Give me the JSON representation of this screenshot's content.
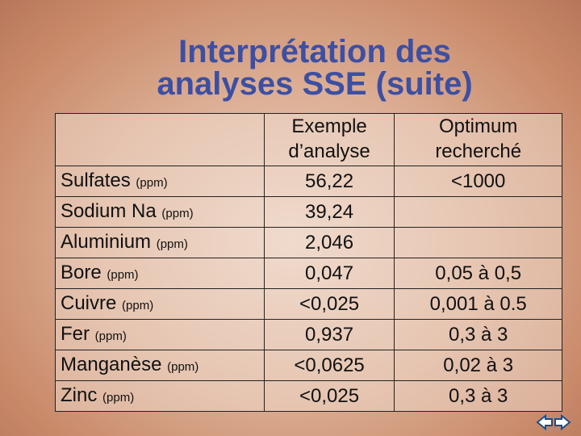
{
  "title": [
    "Interprétation des",
    "analyses SSE (suite)"
  ],
  "table": {
    "headers": [
      "Exemple d’analyse",
      "Optimum recherché"
    ],
    "rows": [
      {
        "name": "Sulfates",
        "unit": "(ppm)",
        "example": "56,22",
        "optimum": "<1000"
      },
      {
        "name": "Sodium Na",
        "unit": "(ppm)",
        "example": "39,24",
        "optimum": null
      },
      {
        "name": "Aluminium",
        "unit": "(ppm)",
        "example": "2,046",
        "optimum": null
      },
      {
        "name": "Bore",
        "unit": "(ppm)",
        "example": "0,047",
        "optimum": "0,05 à 0,5"
      },
      {
        "name": "Cuivre",
        "unit": "(ppm)",
        "example": "<0,025",
        "optimum": "0,001 à 0.5"
      },
      {
        "name": "Fer",
        "unit": "(ppm)",
        "example": "0,937",
        "optimum": "0,3 à 3"
      },
      {
        "name": "Manganèse",
        "unit": "(ppm)",
        "example": "<0,0625",
        "optimum": "0,02 à 3"
      },
      {
        "name": "Zinc",
        "unit": "(ppm)",
        "example": "<0,025",
        "optimum": "0,3 à 3"
      }
    ]
  }
}
